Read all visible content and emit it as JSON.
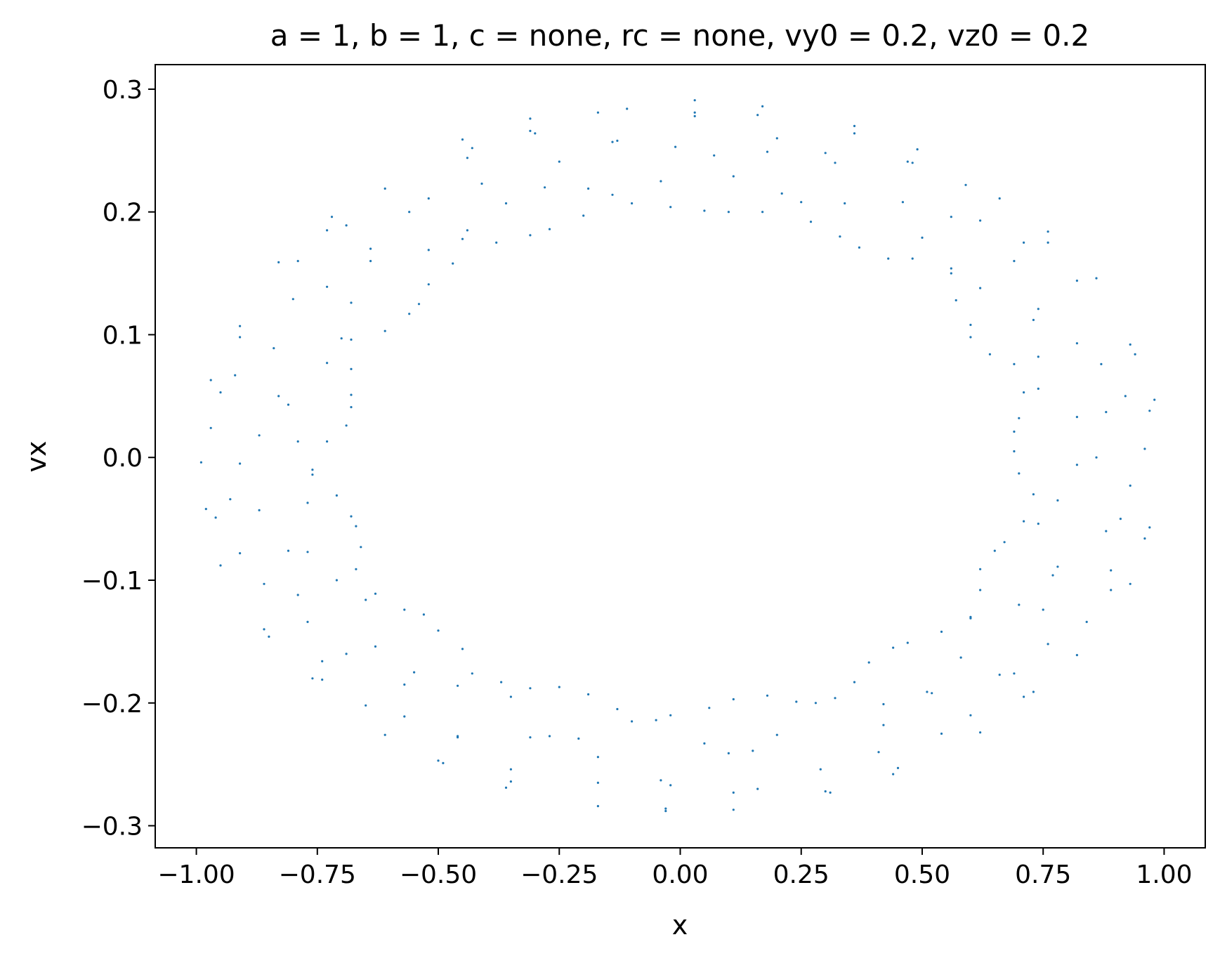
{
  "chart_data": {
    "type": "scatter",
    "title": "a = 1, b = 1, c = none, rc = none, vy0 = 0.2, vz0 = 0.2",
    "xlabel": "x",
    "ylabel": "vx",
    "xlim": [
      -1.085,
      1.085
    ],
    "ylim": [
      -0.318,
      0.32
    ],
    "xticks": [
      -1.0,
      -0.75,
      -0.5,
      -0.25,
      0.0,
      0.25,
      0.5,
      0.75,
      1.0
    ],
    "xtick_labels": [
      "−1.00",
      "−0.75",
      "−0.50",
      "−0.25",
      "0.00",
      "0.25",
      "0.50",
      "0.75",
      "1.00"
    ],
    "yticks": [
      0.3,
      0.2,
      0.1,
      0.0,
      -0.1,
      -0.2,
      -0.3
    ],
    "ytick_labels": [
      "0.3",
      "0.2",
      "0.1",
      "0.0",
      "−0.1",
      "−0.2",
      "−0.3"
    ],
    "grid": false,
    "point_color": "#1f77b4",
    "series": [
      {
        "name": "",
        "points": [
          [
            0.03,
            0.291
          ],
          [
            0.03,
            0.278
          ],
          [
            0.03,
            0.281
          ],
          [
            0.17,
            0.286
          ],
          [
            0.16,
            0.279
          ],
          [
            -0.11,
            0.284
          ],
          [
            -0.17,
            0.281
          ],
          [
            -0.31,
            0.276
          ],
          [
            -0.31,
            0.266
          ],
          [
            -0.3,
            0.264
          ],
          [
            -0.13,
            0.258
          ],
          [
            -0.14,
            0.257
          ],
          [
            -0.45,
            0.259
          ],
          [
            -0.43,
            0.252
          ],
          [
            -0.44,
            0.244
          ],
          [
            0.36,
            0.27
          ],
          [
            0.36,
            0.264
          ],
          [
            0.2,
            0.26
          ],
          [
            0.49,
            0.251
          ],
          [
            0.47,
            0.241
          ],
          [
            0.48,
            0.24
          ],
          [
            0.3,
            0.248
          ],
          [
            0.32,
            0.24
          ],
          [
            0.18,
            0.249
          ],
          [
            0.07,
            0.246
          ],
          [
            -0.01,
            0.253
          ],
          [
            -0.25,
            0.241
          ],
          [
            -0.41,
            0.223
          ],
          [
            -0.04,
            0.225
          ],
          [
            0.11,
            0.229
          ],
          [
            -0.28,
            0.22
          ],
          [
            -0.19,
            0.219
          ],
          [
            -0.61,
            0.219
          ],
          [
            0.59,
            0.222
          ],
          [
            0.66,
            0.211
          ],
          [
            0.21,
            0.215
          ],
          [
            -0.14,
            0.214
          ],
          [
            -0.1,
            0.207
          ],
          [
            -0.36,
            0.207
          ],
          [
            0.46,
            0.208
          ],
          [
            0.25,
            0.208
          ],
          [
            0.34,
            0.207
          ],
          [
            -0.52,
            0.211
          ],
          [
            -0.2,
            0.197
          ],
          [
            -0.56,
            0.2
          ],
          [
            -0.02,
            0.204
          ],
          [
            0.05,
            0.201
          ],
          [
            0.1,
            0.2
          ],
          [
            0.17,
            0.2
          ],
          [
            0.56,
            0.196
          ],
          [
            0.62,
            0.193
          ],
          [
            0.27,
            0.192
          ],
          [
            -0.27,
            0.186
          ],
          [
            -0.45,
            0.178
          ],
          [
            -0.44,
            0.185
          ],
          [
            -0.31,
            0.181
          ],
          [
            -0.38,
            0.175
          ],
          [
            -0.72,
            0.196
          ],
          [
            -0.73,
            0.185
          ],
          [
            -0.69,
            0.189
          ],
          [
            0.76,
            0.184
          ],
          [
            0.76,
            0.175
          ],
          [
            0.71,
            0.175
          ],
          [
            0.5,
            0.179
          ],
          [
            0.33,
            0.18
          ],
          [
            0.37,
            0.171
          ],
          [
            0.43,
            0.162
          ],
          [
            0.48,
            0.162
          ],
          [
            0.69,
            0.16
          ],
          [
            0.56,
            0.154
          ],
          [
            0.56,
            0.15
          ],
          [
            -0.52,
            0.169
          ],
          [
            -0.47,
            0.158
          ],
          [
            -0.64,
            0.17
          ],
          [
            -0.64,
            0.16
          ],
          [
            -0.83,
            0.159
          ],
          [
            -0.79,
            0.16
          ],
          [
            0.86,
            0.146
          ],
          [
            0.82,
            0.144
          ],
          [
            0.62,
            0.138
          ],
          [
            -0.52,
            0.141
          ],
          [
            -0.73,
            0.139
          ],
          [
            -0.8,
            0.129
          ],
          [
            0.57,
            0.128
          ],
          [
            -0.54,
            0.125
          ],
          [
            -0.68,
            0.126
          ],
          [
            -0.56,
            0.117
          ],
          [
            0.74,
            0.121
          ],
          [
            0.73,
            0.112
          ],
          [
            0.6,
            0.108
          ],
          [
            0.6,
            0.098
          ],
          [
            -0.91,
            0.107
          ],
          [
            -0.91,
            0.098
          ],
          [
            -0.61,
            0.103
          ],
          [
            -0.7,
            0.097
          ],
          [
            -0.68,
            0.096
          ],
          [
            0.93,
            0.092
          ],
          [
            0.94,
            0.084
          ],
          [
            0.82,
            0.093
          ],
          [
            -0.84,
            0.089
          ],
          [
            0.64,
            0.084
          ],
          [
            0.74,
            0.082
          ],
          [
            -0.73,
            0.077
          ],
          [
            0.69,
            0.076
          ],
          [
            0.87,
            0.076
          ],
          [
            -0.68,
            0.072
          ],
          [
            -0.92,
            0.067
          ],
          [
            -0.97,
            0.063
          ],
          [
            0.74,
            0.056
          ],
          [
            0.71,
            0.053
          ],
          [
            -0.95,
            0.053
          ],
          [
            -0.68,
            0.051
          ],
          [
            -0.83,
            0.05
          ],
          [
            0.92,
            0.05
          ],
          [
            0.98,
            0.047
          ],
          [
            -0.81,
            0.043
          ],
          [
            -0.68,
            0.041
          ],
          [
            0.97,
            0.038
          ],
          [
            0.88,
            0.037
          ],
          [
            0.7,
            0.032
          ],
          [
            0.82,
            0.033
          ],
          [
            -0.69,
            0.026
          ],
          [
            -0.97,
            0.024
          ],
          [
            0.69,
            0.021
          ],
          [
            -0.87,
            0.018
          ],
          [
            -0.73,
            0.013
          ],
          [
            -0.79,
            0.013
          ],
          [
            0.96,
            0.007
          ],
          [
            0.69,
            0.005
          ],
          [
            0.86,
            0.0
          ],
          [
            -0.99,
            -0.004
          ],
          [
            -0.91,
            -0.005
          ],
          [
            0.82,
            -0.006
          ],
          [
            -0.76,
            -0.01
          ],
          [
            -0.76,
            -0.014
          ],
          [
            0.7,
            -0.013
          ],
          [
            0.93,
            -0.023
          ],
          [
            0.73,
            -0.03
          ],
          [
            -0.71,
            -0.031
          ],
          [
            -0.93,
            -0.034
          ],
          [
            0.78,
            -0.035
          ],
          [
            -0.77,
            -0.037
          ],
          [
            -0.98,
            -0.042
          ],
          [
            -0.87,
            -0.043
          ],
          [
            -0.96,
            -0.049
          ],
          [
            -0.68,
            -0.048
          ],
          [
            0.91,
            -0.05
          ],
          [
            0.71,
            -0.052
          ],
          [
            0.74,
            -0.054
          ],
          [
            -0.67,
            -0.056
          ],
          [
            0.97,
            -0.057
          ],
          [
            0.88,
            -0.06
          ],
          [
            0.96,
            -0.066
          ],
          [
            0.67,
            -0.069
          ],
          [
            -0.66,
            -0.073
          ],
          [
            0.65,
            -0.076
          ],
          [
            -0.81,
            -0.076
          ],
          [
            -0.77,
            -0.077
          ],
          [
            -0.91,
            -0.078
          ],
          [
            -0.95,
            -0.088
          ],
          [
            -0.67,
            -0.091
          ],
          [
            0.62,
            -0.091
          ],
          [
            0.78,
            -0.089
          ],
          [
            0.89,
            -0.092
          ],
          [
            0.77,
            -0.096
          ],
          [
            -0.71,
            -0.1
          ],
          [
            0.93,
            -0.103
          ],
          [
            -0.86,
            -0.103
          ],
          [
            0.62,
            -0.108
          ],
          [
            0.89,
            -0.108
          ],
          [
            -0.63,
            -0.111
          ],
          [
            -0.79,
            -0.112
          ],
          [
            -0.65,
            -0.116
          ],
          [
            0.7,
            -0.12
          ],
          [
            -0.57,
            -0.124
          ],
          [
            0.75,
            -0.124
          ],
          [
            -0.53,
            -0.128
          ],
          [
            0.6,
            -0.13
          ],
          [
            0.6,
            -0.131
          ],
          [
            0.84,
            -0.134
          ],
          [
            -0.77,
            -0.134
          ],
          [
            -0.86,
            -0.14
          ],
          [
            -0.5,
            -0.141
          ],
          [
            0.54,
            -0.142
          ],
          [
            -0.85,
            -0.146
          ],
          [
            0.47,
            -0.151
          ],
          [
            0.76,
            -0.152
          ],
          [
            -0.63,
            -0.154
          ],
          [
            0.44,
            -0.155
          ],
          [
            -0.45,
            -0.156
          ],
          [
            -0.69,
            -0.16
          ],
          [
            0.82,
            -0.161
          ],
          [
            0.58,
            -0.163
          ],
          [
            -0.74,
            -0.166
          ],
          [
            0.39,
            -0.167
          ],
          [
            -0.55,
            -0.175
          ],
          [
            0.66,
            -0.177
          ],
          [
            -0.43,
            -0.176
          ],
          [
            0.69,
            -0.176
          ],
          [
            -0.76,
            -0.18
          ],
          [
            -0.74,
            -0.181
          ],
          [
            0.36,
            -0.183
          ],
          [
            -0.57,
            -0.185
          ],
          [
            -0.37,
            -0.183
          ],
          [
            -0.46,
            -0.186
          ],
          [
            -0.31,
            -0.188
          ],
          [
            -0.25,
            -0.187
          ],
          [
            0.51,
            -0.191
          ],
          [
            0.52,
            -0.192
          ],
          [
            0.73,
            -0.191
          ],
          [
            -0.19,
            -0.193
          ],
          [
            0.18,
            -0.194
          ],
          [
            0.71,
            -0.195
          ],
          [
            -0.35,
            -0.195
          ],
          [
            0.32,
            -0.196
          ],
          [
            0.11,
            -0.197
          ],
          [
            0.24,
            -0.199
          ],
          [
            0.28,
            -0.2
          ],
          [
            -0.65,
            -0.202
          ],
          [
            0.42,
            -0.201
          ],
          [
            0.06,
            -0.204
          ],
          [
            -0.13,
            -0.205
          ],
          [
            -0.57,
            -0.211
          ],
          [
            -0.02,
            -0.21
          ],
          [
            0.6,
            -0.21
          ],
          [
            -0.05,
            -0.214
          ],
          [
            -0.1,
            -0.215
          ],
          [
            0.42,
            -0.218
          ],
          [
            0.62,
            -0.224
          ],
          [
            -0.61,
            -0.226
          ],
          [
            0.54,
            -0.225
          ],
          [
            0.2,
            -0.226
          ],
          [
            -0.46,
            -0.228
          ],
          [
            -0.27,
            -0.227
          ],
          [
            -0.46,
            -0.227
          ],
          [
            -0.31,
            -0.228
          ],
          [
            -0.21,
            -0.229
          ],
          [
            0.05,
            -0.233
          ],
          [
            0.1,
            -0.241
          ],
          [
            0.15,
            -0.239
          ],
          [
            0.41,
            -0.24
          ],
          [
            -0.17,
            -0.244
          ],
          [
            -0.5,
            -0.247
          ],
          [
            -0.49,
            -0.249
          ],
          [
            0.45,
            -0.253
          ],
          [
            0.44,
            -0.258
          ],
          [
            0.29,
            -0.254
          ],
          [
            -0.35,
            -0.254
          ],
          [
            -0.04,
            -0.263
          ],
          [
            -0.35,
            -0.264
          ],
          [
            -0.17,
            -0.265
          ],
          [
            -0.02,
            -0.267
          ],
          [
            -0.36,
            -0.269
          ],
          [
            0.16,
            -0.27
          ],
          [
            0.3,
            -0.272
          ],
          [
            0.31,
            -0.273
          ],
          [
            0.11,
            -0.273
          ],
          [
            -0.17,
            -0.284
          ],
          [
            -0.03,
            -0.286
          ],
          [
            -0.03,
            -0.288
          ],
          [
            0.11,
            -0.287
          ]
        ]
      }
    ]
  }
}
